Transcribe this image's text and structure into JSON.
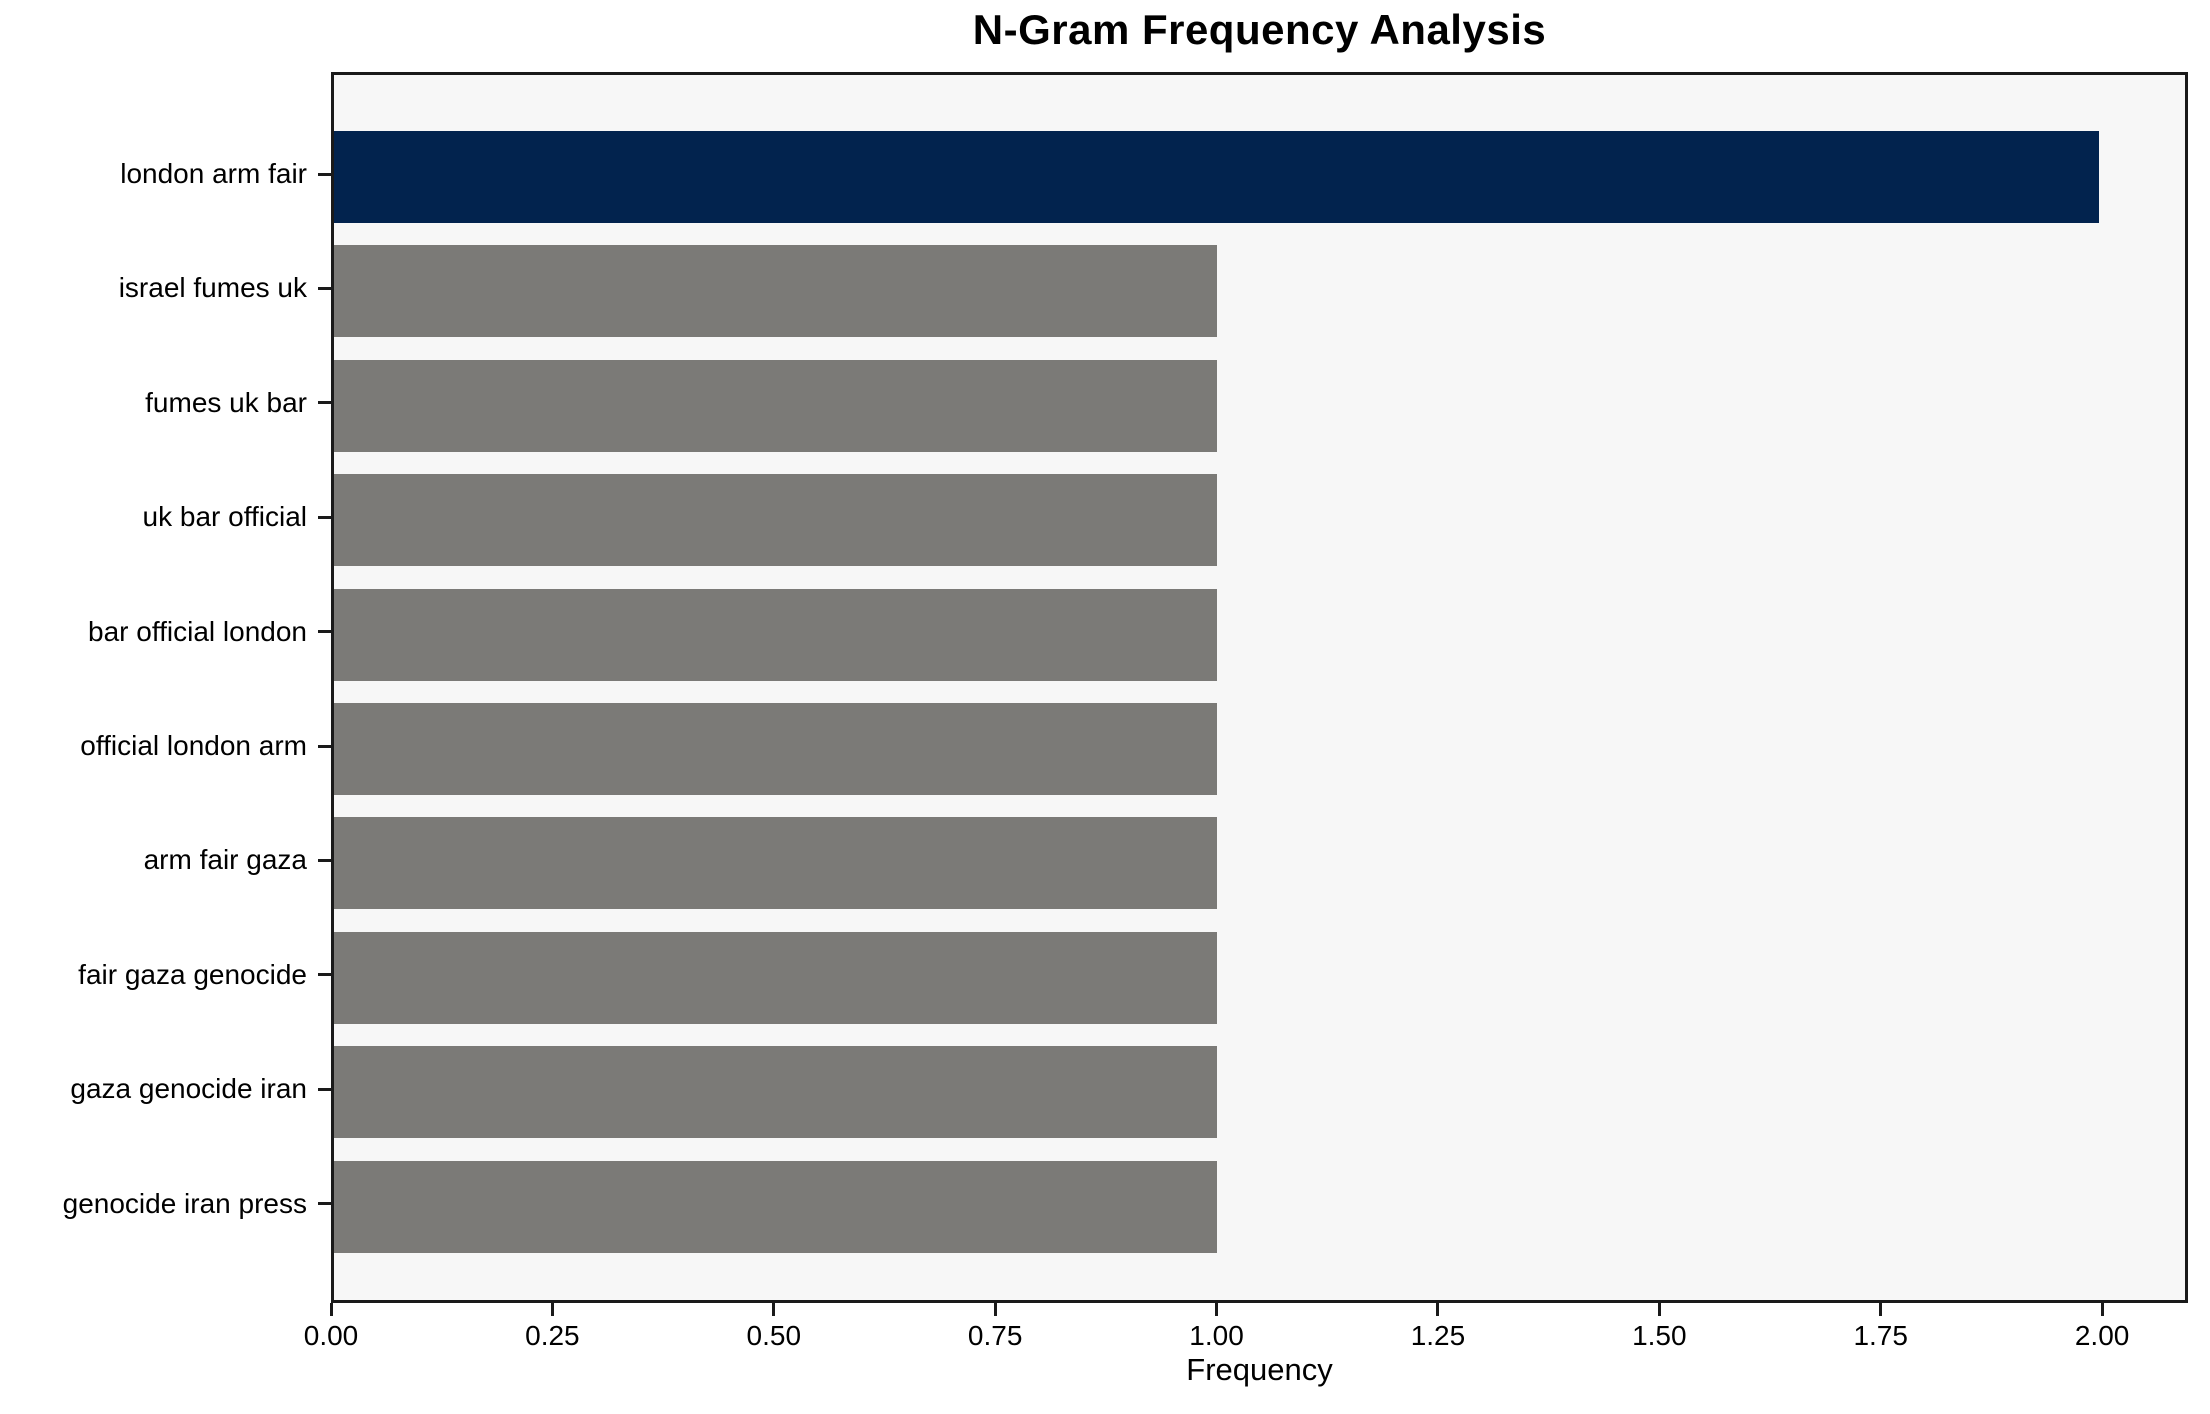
{
  "chart_data": {
    "type": "bar",
    "orientation": "horizontal",
    "title": "N-Gram Frequency Analysis",
    "xlabel": "Frequency",
    "ylabel": "",
    "categories": [
      "london arm fair",
      "israel fumes uk",
      "fumes uk bar",
      "uk bar official",
      "bar official london",
      "official london arm",
      "arm fair gaza",
      "fair gaza genocide",
      "gaza genocide iran",
      "genocide iran press"
    ],
    "values": [
      2,
      1,
      1,
      1,
      1,
      1,
      1,
      1,
      1,
      1
    ],
    "xlim": [
      0,
      2.097
    ],
    "xtick_labels": [
      "0.00",
      "0.25",
      "0.50",
      "0.75",
      "1.00",
      "1.25",
      "1.50",
      "1.75",
      "2.00"
    ],
    "xtick_values": [
      0,
      0.25,
      0.5,
      0.75,
      1.0,
      1.25,
      1.5,
      1.75,
      2.0
    ],
    "grid": false,
    "legend": null,
    "highlight_index": 0,
    "colors": {
      "highlight_bar": "#02234E",
      "default_bar": "#7B7A77",
      "plot_background": "#F7F7F7",
      "figure_background": "#FFFFFF",
      "axis": "#1A1A1A"
    }
  }
}
